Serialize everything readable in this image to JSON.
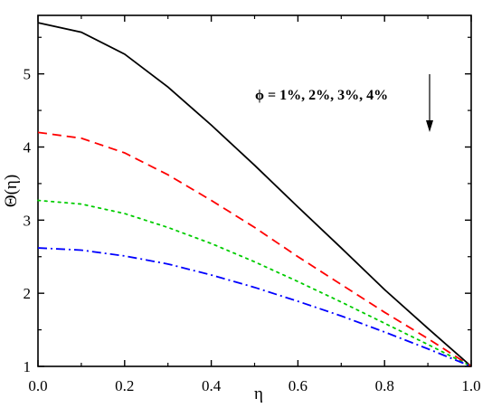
{
  "chart_data": {
    "type": "line",
    "xlabel": "η",
    "ylabel": "Θ(η)",
    "xlim": [
      0.0,
      1.0
    ],
    "ylim": [
      1.0,
      5.8
    ],
    "x_ticks": [
      "0.0",
      "0.2",
      "0.4",
      "0.6",
      "0.8",
      "1.0"
    ],
    "y_ticks": [
      "1",
      "2",
      "3",
      "4",
      "5"
    ],
    "annotation": "ϕ = 1%, 2%, 3%, 4%",
    "annotation_arrow": "down",
    "legend": "none",
    "grid": false,
    "series": [
      {
        "color": "#000000",
        "style": "solid",
        "points": [
          [
            0.0,
            5.7
          ],
          [
            0.1,
            5.57
          ],
          [
            0.2,
            5.27
          ],
          [
            0.3,
            4.82
          ],
          [
            0.4,
            4.3
          ],
          [
            0.5,
            3.75
          ],
          [
            0.6,
            3.18
          ],
          [
            0.7,
            2.62
          ],
          [
            0.8,
            2.05
          ],
          [
            0.9,
            1.52
          ],
          [
            1.0,
            1.0
          ]
        ]
      },
      {
        "color": "#ff0000",
        "style": "dashed",
        "points": [
          [
            0.0,
            4.2
          ],
          [
            0.1,
            4.12
          ],
          [
            0.2,
            3.92
          ],
          [
            0.3,
            3.62
          ],
          [
            0.4,
            3.27
          ],
          [
            0.5,
            2.9
          ],
          [
            0.6,
            2.5
          ],
          [
            0.7,
            2.12
          ],
          [
            0.8,
            1.74
          ],
          [
            0.9,
            1.38
          ],
          [
            1.0,
            1.0
          ]
        ]
      },
      {
        "color": "#00cc00",
        "style": "dotted",
        "points": [
          [
            0.0,
            3.27
          ],
          [
            0.1,
            3.22
          ],
          [
            0.2,
            3.09
          ],
          [
            0.3,
            2.9
          ],
          [
            0.4,
            2.68
          ],
          [
            0.5,
            2.43
          ],
          [
            0.6,
            2.16
          ],
          [
            0.7,
            1.88
          ],
          [
            0.8,
            1.59
          ],
          [
            0.9,
            1.3
          ],
          [
            1.0,
            1.0
          ]
        ]
      },
      {
        "color": "#0000ff",
        "style": "dashdot",
        "points": [
          [
            0.0,
            2.62
          ],
          [
            0.1,
            2.59
          ],
          [
            0.2,
            2.51
          ],
          [
            0.3,
            2.4
          ],
          [
            0.4,
            2.25
          ],
          [
            0.5,
            2.08
          ],
          [
            0.6,
            1.89
          ],
          [
            0.7,
            1.69
          ],
          [
            0.8,
            1.47
          ],
          [
            0.9,
            1.24
          ],
          [
            1.0,
            1.0
          ]
        ]
      }
    ]
  }
}
